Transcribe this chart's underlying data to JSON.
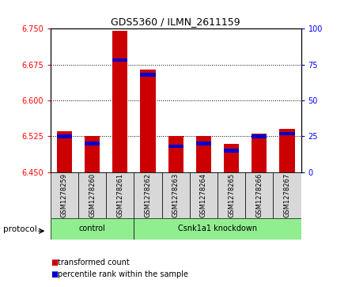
{
  "title": "GDS5360 / ILMN_2611159",
  "samples": [
    "GSM1278259",
    "GSM1278260",
    "GSM1278261",
    "GSM1278262",
    "GSM1278263",
    "GSM1278264",
    "GSM1278265",
    "GSM1278266",
    "GSM1278267"
  ],
  "transformed_counts": [
    6.535,
    6.525,
    6.745,
    6.665,
    6.525,
    6.525,
    6.51,
    6.53,
    6.54
  ],
  "percentile_ranks": [
    25,
    20,
    78,
    68,
    18,
    20,
    15,
    25,
    27
  ],
  "ylim_left": [
    6.45,
    6.75
  ],
  "ylim_right": [
    0,
    100
  ],
  "yticks_left": [
    6.45,
    6.525,
    6.6,
    6.675,
    6.75
  ],
  "yticks_right": [
    0,
    25,
    50,
    75,
    100
  ],
  "bar_color": "#cc0000",
  "percentile_color": "#0000cc",
  "groups": [
    {
      "label": "control",
      "start": 0,
      "end": 3,
      "color": "#90EE90"
    },
    {
      "label": "Csnk1a1 knockdown",
      "start": 3,
      "end": 9,
      "color": "#90EE90"
    }
  ],
  "protocol_label": "protocol",
  "legend_items": [
    {
      "label": "transformed count",
      "color": "#cc0000"
    },
    {
      "label": "percentile rank within the sample",
      "color": "#0000cc"
    }
  ],
  "background_color": "#ffffff",
  "sample_box_color": "#d8d8d8",
  "bar_width": 0.55
}
